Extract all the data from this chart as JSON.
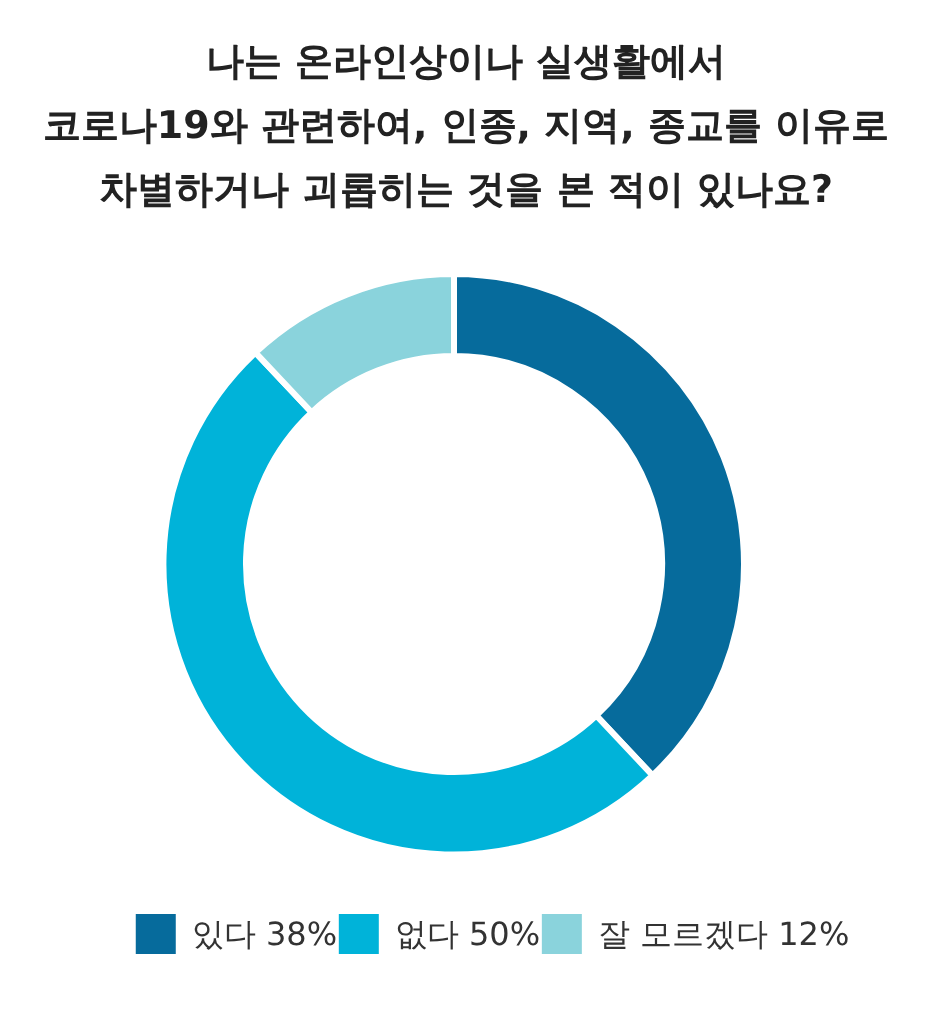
{
  "chart_data": {
    "type": "donut",
    "title": "나는 온라인상이나 실생활에서\n코로나19와 관련하여, 인종, 지역, 종교를 이유로\n차별하거나 괴롭히는 것을 본 적이 있나요?",
    "categories": [
      "있다",
      "없다",
      "잘 모르겠다"
    ],
    "values": [
      38,
      50,
      12
    ],
    "value_labels": [
      "38%",
      "50%",
      "12%"
    ],
    "colors": [
      "#066b9c",
      "#00b3d9",
      "#8ad3dc"
    ],
    "legend": "bottom"
  }
}
